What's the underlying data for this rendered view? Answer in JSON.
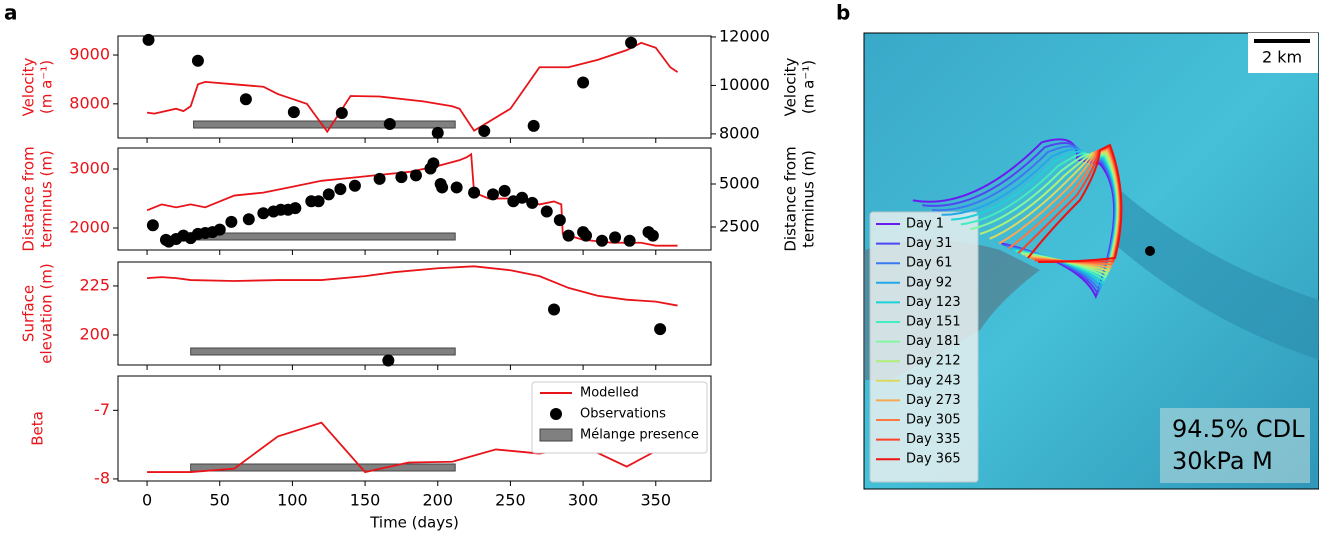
{
  "panel_labels": [
    "a",
    "b"
  ],
  "chart_data": [
    {
      "type": "line",
      "ylabel": [
        "Velocity",
        "(m a⁻¹)"
      ],
      "y2label": [
        "Velocity",
        "(m a⁻¹)"
      ],
      "axis_colors": {
        "y": "#e8141a",
        "y2": "#000000"
      },
      "ylim": [
        7300,
        9390
      ],
      "yticks": [
        8000,
        9000
      ],
      "y2lim": [
        7830,
        12040
      ],
      "y2ticks": [
        8000,
        10000,
        12000
      ],
      "spans": [
        {
          "color": "#808080",
          "x": [
            32,
            212
          ]
        }
      ],
      "series": [
        {
          "type": "line",
          "color": "#e8141a",
          "x": [
            0,
            5,
            20,
            25,
            30,
            35,
            40,
            60,
            80,
            90,
            100,
            110,
            124,
            140,
            160,
            190,
            210,
            215,
            225,
            250,
            270,
            290,
            310,
            330,
            340,
            350,
            360,
            365
          ],
          "values": [
            7820,
            7800,
            7900,
            7850,
            7950,
            8400,
            8450,
            8400,
            8350,
            8200,
            8100,
            8000,
            7430,
            8160,
            8150,
            8050,
            7950,
            7900,
            7450,
            7900,
            8750,
            8750,
            8900,
            9100,
            9250,
            9150,
            8750,
            8650
          ]
        },
        {
          "type": "scatter",
          "color": "#000000",
          "axis": "y2",
          "x": [
            1,
            35,
            68,
            101,
            134,
            167,
            200,
            232,
            266,
            300,
            333
          ],
          "values": [
            11880,
            11020,
            9430,
            8900,
            8860,
            8410,
            8040,
            8120,
            8330,
            10120,
            11760
          ]
        }
      ]
    },
    {
      "type": "line",
      "ylabel": [
        "Distance from",
        "terminus (m)"
      ],
      "y2label": [
        "Distance from",
        "terminus (m)"
      ],
      "axis_colors": {
        "y": "#e8141a",
        "y2": "#000000"
      },
      "ylim": [
        1627,
        3356
      ],
      "yticks": [
        2000,
        3000
      ],
      "y2lim": [
        1163,
        7093
      ],
      "y2ticks": [
        2500,
        5000
      ],
      "spans": [
        {
          "color": "#808080",
          "x": [
            32,
            212
          ]
        }
      ],
      "series": [
        {
          "type": "line",
          "color": "#e8141a",
          "x": [
            0,
            10,
            20,
            30,
            40,
            50,
            60,
            80,
            100,
            120,
            140,
            160,
            180,
            200,
            215,
            220,
            223,
            225,
            235,
            250,
            260,
            270,
            280,
            285,
            286,
            300,
            320,
            340,
            350,
            365
          ],
          "values": [
            2300,
            2400,
            2350,
            2400,
            2350,
            2450,
            2550,
            2600,
            2700,
            2800,
            2850,
            2900,
            2950,
            3050,
            3150,
            3200,
            3250,
            2600,
            2500,
            2500,
            2450,
            2400,
            2450,
            2400,
            1900,
            1800,
            1750,
            1750,
            1700,
            1700
          ]
        },
        {
          "type": "scatter",
          "color": "#000000",
          "axis": "y2",
          "x": [
            4,
            13,
            15,
            20,
            25,
            30,
            35,
            40,
            45,
            50,
            58,
            70,
            80,
            87,
            92,
            97,
            102,
            113,
            118,
            125,
            133,
            143,
            160,
            175,
            185,
            195,
            197,
            202,
            203,
            213,
            225,
            238,
            246,
            252,
            258,
            265,
            275,
            284,
            290,
            300,
            302,
            313,
            322,
            332,
            345,
            348
          ],
          "values": [
            2600,
            1750,
            1650,
            1800,
            2000,
            1850,
            2100,
            2150,
            2200,
            2350,
            2800,
            2950,
            3300,
            3400,
            3500,
            3500,
            3600,
            4000,
            4000,
            4400,
            4700,
            4900,
            5300,
            5400,
            5500,
            5900,
            6200,
            5000,
            4800,
            4800,
            4500,
            4400,
            4600,
            4000,
            4200,
            3900,
            3400,
            2900,
            2000,
            2200,
            2000,
            1700,
            1900,
            1700,
            2200,
            2000
          ]
        }
      ]
    },
    {
      "type": "line",
      "ylabel": [
        "Surface",
        "elevation (m)"
      ],
      "axis_colors": {
        "y": "#e8141a"
      },
      "ylim": [
        184.7,
        237.2
      ],
      "yticks": [
        200,
        225
      ],
      "spans": [
        {
          "color": "#808080",
          "x": [
            30,
            212
          ]
        }
      ],
      "series": [
        {
          "type": "line",
          "color": "#e8141a",
          "x": [
            0,
            10,
            20,
            30,
            60,
            90,
            120,
            150,
            170,
            200,
            225,
            250,
            270,
            290,
            310,
            330,
            350,
            365
          ],
          "values": [
            229,
            229.5,
            229,
            228,
            227.5,
            228,
            228,
            230,
            232,
            234,
            235,
            233,
            230,
            224,
            220,
            218,
            217,
            215
          ]
        },
        {
          "type": "scatter",
          "color": "#000000",
          "x": [
            166,
            280,
            353
          ],
          "values": [
            187,
            213,
            203
          ]
        }
      ]
    },
    {
      "type": "line",
      "ylabel": [
        "Beta"
      ],
      "xlabel": "Time (days)",
      "axis_colors": {
        "y": "#e8141a"
      },
      "xlim": [
        -20,
        388
      ],
      "xticks": [
        0,
        50,
        100,
        150,
        200,
        250,
        300,
        350
      ],
      "ylim": [
        -8.03,
        -6.5
      ],
      "yticks": [
        -8,
        -7
      ],
      "spans": [
        {
          "name": "Mélange presence",
          "color": "#808080",
          "x": [
            30,
            212
          ]
        }
      ],
      "series": [
        {
          "name": "Modelled",
          "type": "line",
          "color": "#e8141a",
          "x": [
            0,
            30,
            60,
            90,
            120,
            150,
            180,
            210,
            240,
            270,
            300,
            330,
            360
          ],
          "values": [
            -7.9,
            -7.9,
            -7.85,
            -7.38,
            -7.18,
            -7.9,
            -7.76,
            -7.75,
            -7.57,
            -7.63,
            -7.52,
            -7.82,
            -7.48
          ]
        },
        {
          "name": "Observations",
          "type": "scatter",
          "color": "#000000",
          "x": [],
          "values": []
        }
      ]
    }
  ],
  "map_panel": {
    "scale_bar": "2 km",
    "annotation": [
      "94.5% CDL",
      "30kPa M"
    ],
    "legend": [
      {
        "name": "Day 1",
        "color": "#6a1cf0"
      },
      {
        "name": "Day 31",
        "color": "#5046f0"
      },
      {
        "name": "Day 61",
        "color": "#3a7af0"
      },
      {
        "name": "Day 92",
        "color": "#22a8e8"
      },
      {
        "name": "Day 123",
        "color": "#1ed0d8"
      },
      {
        "name": "Day 151",
        "color": "#40ecc0"
      },
      {
        "name": "Day 181",
        "color": "#80f8a0"
      },
      {
        "name": "Day 212",
        "color": "#b0f07a"
      },
      {
        "name": "Day 243",
        "color": "#dcd860"
      },
      {
        "name": "Day 273",
        "color": "#f8a850"
      },
      {
        "name": "Day 305",
        "color": "#ff7840"
      },
      {
        "name": "Day 335",
        "color": "#ff4028"
      },
      {
        "name": "Day 365",
        "color": "#f01010"
      }
    ]
  }
}
